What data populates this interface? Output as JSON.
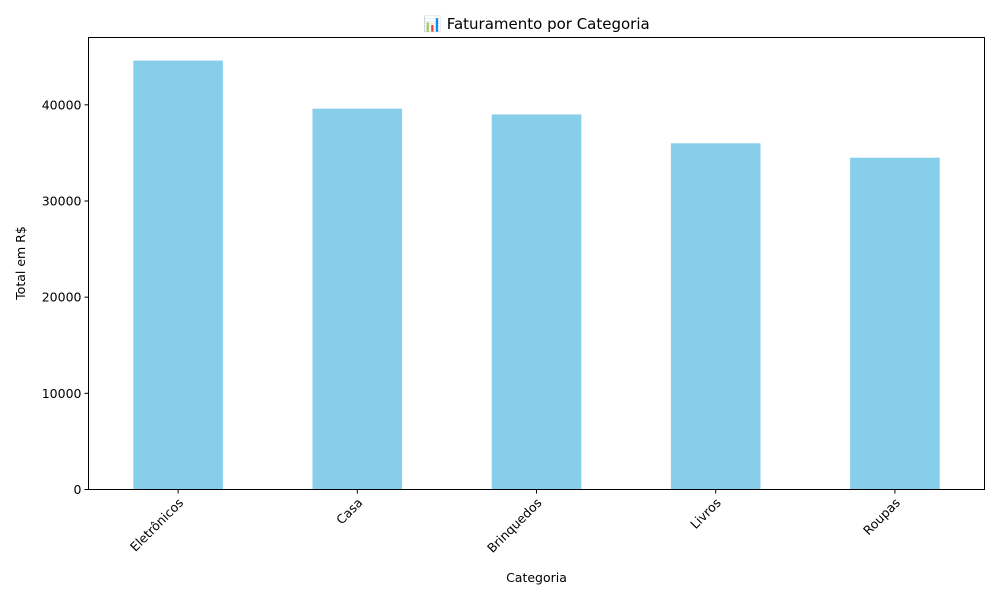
{
  "chart_data": {
    "type": "bar",
    "title": "📊 Faturamento por Categoria",
    "xlabel": "Categoria",
    "ylabel": "Total em R$",
    "categories": [
      "Eletrônicos",
      "Casa",
      "Brinquedos",
      "Livros",
      "Roupas"
    ],
    "values": [
      44600,
      39600,
      39000,
      36000,
      34500
    ],
    "ylim": [
      0,
      47000
    ],
    "yticks": [
      "0",
      "10000",
      "20000",
      "30000",
      "40000"
    ],
    "ytick_values": [
      0,
      10000,
      20000,
      30000,
      40000
    ],
    "x_tick_rotation_deg": 45,
    "grid": false,
    "legend": "none",
    "bar_color": "#87CEEB"
  }
}
